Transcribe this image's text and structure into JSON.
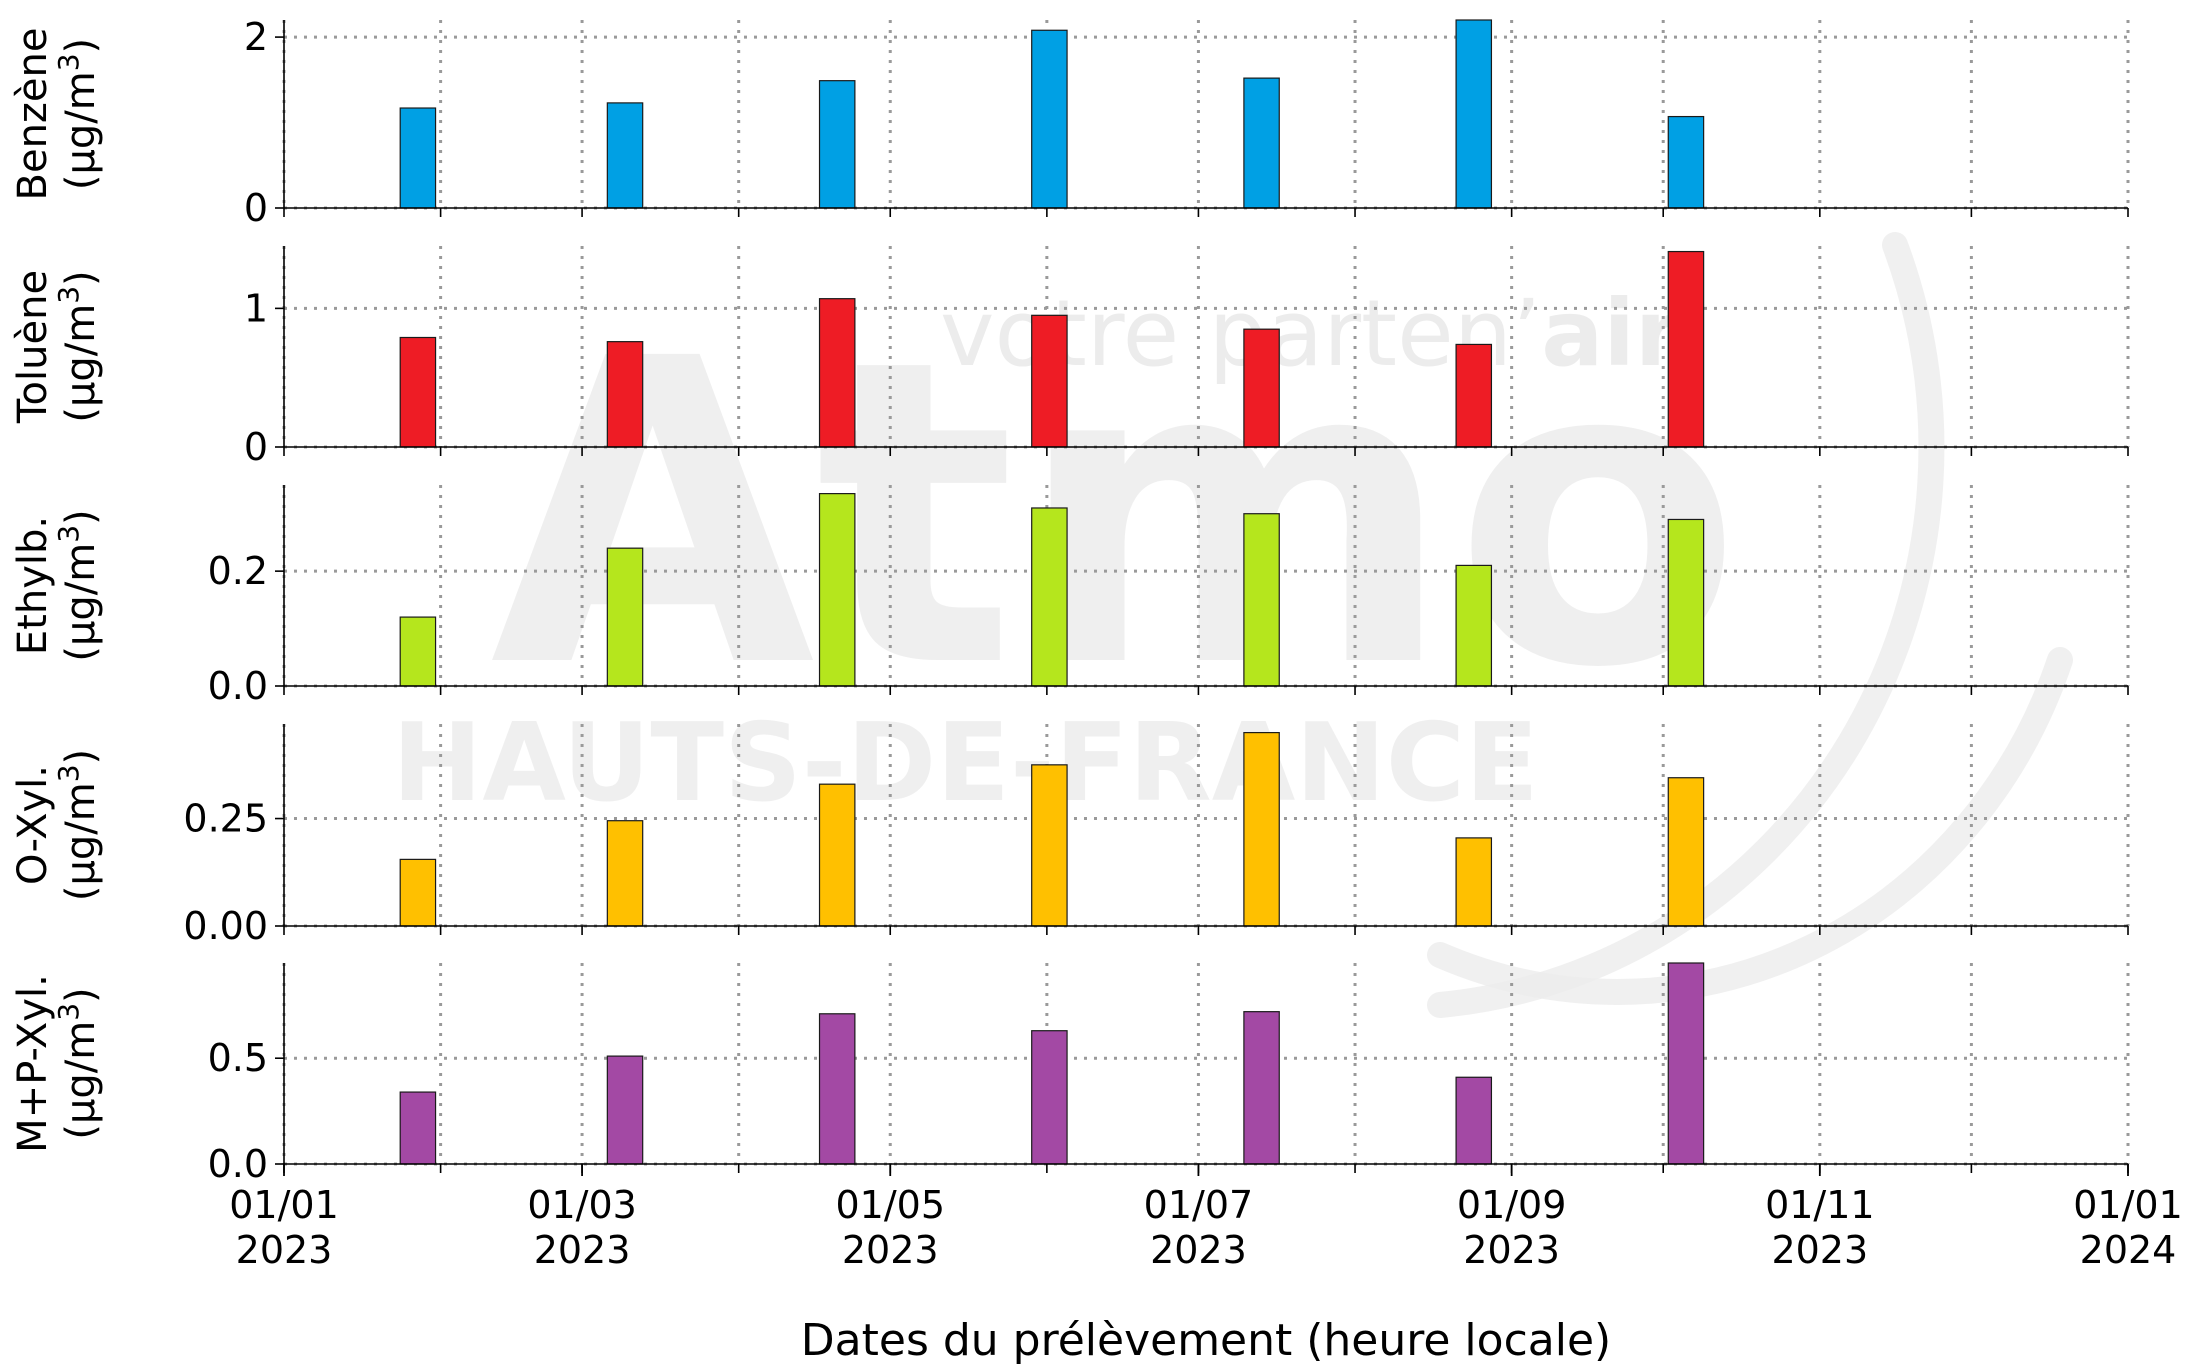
{
  "chart_data": {
    "type": "bar",
    "x_axis": {
      "title": "Dates du prélèvement (heure locale)",
      "range": [
        "2023-01-01",
        "2024-01-01"
      ],
      "ticks": [
        {
          "date": "2023-01-01",
          "line1": "01/01",
          "line2": "2023"
        },
        {
          "date": "2023-03-01",
          "line1": "01/03",
          "line2": "2023"
        },
        {
          "date": "2023-05-01",
          "line1": "01/05",
          "line2": "2023"
        },
        {
          "date": "2023-07-01",
          "line1": "01/07",
          "line2": "2023"
        },
        {
          "date": "2023-09-01",
          "line1": "01/09",
          "line2": "2023"
        },
        {
          "date": "2023-11-01",
          "line1": "01/11",
          "line2": "2023"
        },
        {
          "date": "2024-01-01",
          "line1": "01/01",
          "line2": "2024"
        }
      ],
      "minor_ticks": [
        "2023-02-01",
        "2023-04-01",
        "2023-06-01",
        "2023-08-01",
        "2023-10-01",
        "2023-12-01"
      ]
    },
    "grid": true,
    "sample_periods": [
      {
        "start": "2023-01-24",
        "end": "2023-01-31"
      },
      {
        "start": "2023-03-06",
        "end": "2023-03-13"
      },
      {
        "start": "2023-04-17",
        "end": "2023-04-24"
      },
      {
        "start": "2023-05-29",
        "end": "2023-06-05"
      },
      {
        "start": "2023-07-10",
        "end": "2023-07-17"
      },
      {
        "start": "2023-08-21",
        "end": "2023-08-28"
      },
      {
        "start": "2023-10-02",
        "end": "2023-10-09"
      }
    ],
    "panels": [
      {
        "name": "Benzène",
        "unit": "(µg/m",
        "unit_sup": "3",
        "unit_close": ")",
        "color": "#00a0e4",
        "ylim": [
          0,
          2.2
        ],
        "ticks": [
          {
            "v": 0,
            "t": "0"
          },
          {
            "v": 2,
            "t": "2"
          }
        ],
        "values": [
          1.17,
          1.23,
          1.49,
          2.08,
          1.52,
          2.2,
          1.07
        ]
      },
      {
        "name": "Toluène",
        "unit": "(µg/m",
        "unit_sup": "3",
        "unit_close": ")",
        "color": "#ee1c25",
        "ylim": [
          0,
          1.45
        ],
        "ticks": [
          {
            "v": 0,
            "t": "0"
          },
          {
            "v": 1,
            "t": "1"
          }
        ],
        "values": [
          0.79,
          0.76,
          1.07,
          0.95,
          0.85,
          0.74,
          1.41
        ]
      },
      {
        "name": "Ethylb.",
        "unit": "(µg/m",
        "unit_sup": "3",
        "unit_close": ")",
        "color": "#b5e61d",
        "ylim": [
          0,
          0.35
        ],
        "ticks": [
          {
            "v": 0,
            "t": "0.0"
          },
          {
            "v": 0.2,
            "t": "0.2"
          }
        ],
        "values": [
          0.12,
          0.24,
          0.335,
          0.31,
          0.3,
          0.21,
          0.29
        ]
      },
      {
        "name": "O-Xyl.",
        "unit": "(µg/m",
        "unit_sup": "3",
        "unit_close": ")",
        "color": "#ffc000",
        "ylim": [
          0,
          0.47
        ],
        "ticks": [
          {
            "v": 0,
            "t": "0.00"
          },
          {
            "v": 0.25,
            "t": "0.25"
          }
        ],
        "values": [
          0.155,
          0.245,
          0.33,
          0.375,
          0.45,
          0.205,
          0.345
        ]
      },
      {
        "name": "M+P-Xyl.",
        "unit": "(µg/m",
        "unit_sup": "3",
        "unit_close": ")",
        "color": "#a349a4",
        "ylim": [
          0,
          0.95
        ],
        "ticks": [
          {
            "v": 0,
            "t": "0.0"
          },
          {
            "v": 0.5,
            "t": "0.5"
          }
        ],
        "values": [
          0.34,
          0.51,
          0.71,
          0.63,
          0.72,
          0.41,
          0.95
        ]
      }
    ]
  },
  "watermark": {
    "brand": "Atmo",
    "tagline_light": "votre partenʼ",
    "tagline_bold": "air",
    "region": "HAUTS-DE-FRANCE",
    "color": "#ececec"
  }
}
